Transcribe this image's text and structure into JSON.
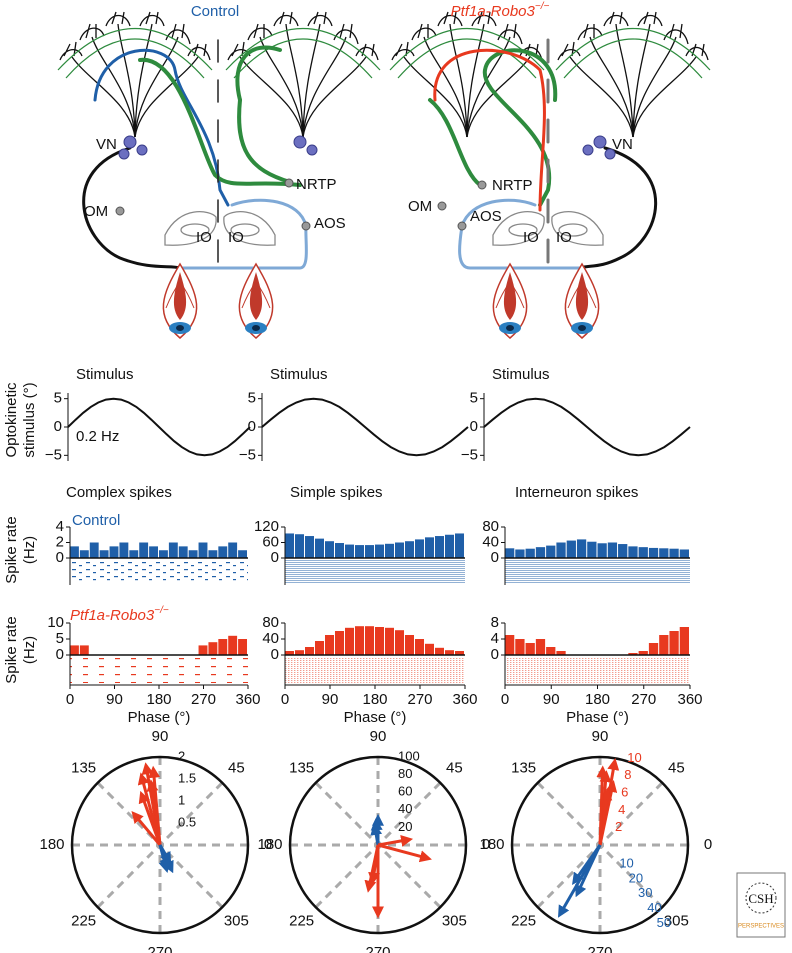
{
  "diagram": {
    "left": {
      "title": "Control",
      "labels": [
        "VN",
        "NRTP",
        "OM",
        "AOS",
        "IO",
        "IO"
      ]
    },
    "right": {
      "title": "Ptf1a-Robo3",
      "title_sup": "−/−",
      "labels": [
        "OM",
        "NRTP",
        "AOS",
        "IO",
        "IO",
        "VN"
      ]
    }
  },
  "stimulus": {
    "ylabel": [
      "Optokinetic",
      "stimulus (°)"
    ],
    "annotation": "0.2 Hz",
    "panels": [
      {
        "type": "line",
        "title": "Stimulus",
        "xlim": [
          0,
          360
        ],
        "ylim": [
          -6,
          6
        ],
        "yticks": [
          5,
          0,
          {
            "value": -5,
            "label": "−5"
          }
        ],
        "color": "#111111",
        "x": [
          0,
          15,
          30,
          45,
          60,
          75,
          90,
          105,
          120,
          135,
          150,
          165,
          180,
          195,
          210,
          225,
          240,
          255,
          270,
          285,
          300,
          315,
          330,
          345,
          360
        ],
        "values": [
          0,
          1.29,
          2.5,
          3.54,
          4.33,
          4.83,
          5,
          4.83,
          4.33,
          3.54,
          2.5,
          1.29,
          0,
          -1.29,
          -2.5,
          -3.54,
          -4.33,
          -4.83,
          -5,
          -4.83,
          -4.33,
          -3.54,
          -2.5,
          -1.29,
          0
        ]
      },
      {
        "type": "line",
        "title": "Stimulus",
        "xlim": [
          0,
          360
        ],
        "ylim": [
          -6,
          6
        ],
        "yticks": [
          5,
          0,
          {
            "value": -5,
            "label": "−5"
          }
        ],
        "color": "#111111",
        "x": [
          0,
          15,
          30,
          45,
          60,
          75,
          90,
          105,
          120,
          135,
          150,
          165,
          180,
          195,
          210,
          225,
          240,
          255,
          270,
          285,
          300,
          315,
          330,
          345,
          360
        ],
        "values": [
          0,
          1.29,
          2.5,
          3.54,
          4.33,
          4.83,
          5,
          4.83,
          4.33,
          3.54,
          2.5,
          1.29,
          0,
          -1.29,
          -2.5,
          -3.54,
          -4.33,
          -4.83,
          -5,
          -4.83,
          -4.33,
          -3.54,
          -2.5,
          -1.29,
          0
        ]
      },
      {
        "type": "line",
        "title": "Stimulus",
        "xlim": [
          0,
          360
        ],
        "ylim": [
          -6,
          6
        ],
        "yticks": [
          5,
          0,
          {
            "value": -5,
            "label": "−5"
          }
        ],
        "color": "#111111",
        "x": [
          0,
          15,
          30,
          45,
          60,
          75,
          90,
          105,
          120,
          135,
          150,
          165,
          180,
          195,
          210,
          225,
          240,
          255,
          270,
          285,
          300,
          315,
          330,
          345,
          360
        ],
        "values": [
          0,
          1.29,
          2.5,
          3.54,
          4.33,
          4.83,
          5,
          4.83,
          4.33,
          3.54,
          2.5,
          1.29,
          0,
          -1.29,
          -2.5,
          -3.54,
          -4.33,
          -4.83,
          -5,
          -4.83,
          -4.33,
          -3.54,
          -2.5,
          -1.29,
          0
        ]
      }
    ]
  },
  "spikes": {
    "titles": [
      "Complex spikes",
      "Simple spikes",
      "Interneuron spikes"
    ],
    "ylabel": [
      "Spike rate",
      "(Hz)"
    ],
    "xlabel": "Phase (°)",
    "rows": [
      {
        "label": "Control",
        "color": "#1f5fa8",
        "panels": [
          {
            "type": "histogram",
            "bins": [
              0,
              20,
              40,
              60,
              80,
              100,
              120,
              140,
              160,
              180,
              200,
              220,
              240,
              260,
              280,
              300,
              320,
              340,
              360
            ],
            "xlim": [
              0,
              360
            ],
            "ylim": [
              0,
              4
            ],
            "yticks": [
              0,
              2,
              4
            ],
            "values": [
              1.5,
              1,
              2,
              1,
              1.5,
              2,
              1,
              2,
              1.5,
              1,
              2,
              1.5,
              1,
              2,
              1,
              1.5,
              2,
              1
            ]
          },
          {
            "type": "histogram",
            "bins": [
              0,
              20,
              40,
              60,
              80,
              100,
              120,
              140,
              160,
              180,
              200,
              220,
              240,
              260,
              280,
              300,
              320,
              340,
              360
            ],
            "xlim": [
              0,
              360
            ],
            "ylim": [
              0,
              120
            ],
            "yticks": [
              0,
              60,
              120
            ],
            "values": [
              95,
              92,
              85,
              75,
              65,
              58,
              52,
              50,
              50,
              52,
              55,
              60,
              65,
              72,
              80,
              85,
              90,
              95
            ]
          },
          {
            "type": "histogram",
            "bins": [
              0,
              20,
              40,
              60,
              80,
              100,
              120,
              140,
              160,
              180,
              200,
              220,
              240,
              260,
              280,
              300,
              320,
              340,
              360
            ],
            "xlim": [
              0,
              360
            ],
            "ylim": [
              0,
              80
            ],
            "yticks": [
              0,
              40,
              80
            ],
            "values": [
              25,
              22,
              24,
              28,
              32,
              40,
              45,
              48,
              42,
              38,
              40,
              36,
              30,
              28,
              26,
              25,
              24,
              22
            ]
          }
        ]
      },
      {
        "label": "Ptf1a-Robo3",
        "label_sup": "−/−",
        "color": "#e8391f",
        "panels": [
          {
            "type": "histogram",
            "bins": [
              0,
              20,
              40,
              60,
              80,
              100,
              120,
              140,
              160,
              180,
              200,
              220,
              240,
              260,
              280,
              300,
              320,
              340,
              360
            ],
            "xlim": [
              0,
              360
            ],
            "ylim": [
              0,
              10
            ],
            "yticks": [
              0,
              5,
              10
            ],
            "xticks": [
              0,
              90,
              180,
              270,
              360
            ],
            "values": [
              3,
              3,
              0,
              0,
              0,
              0,
              0,
              0,
              0,
              0,
              0,
              0,
              0,
              3,
              4,
              5,
              6,
              5
            ]
          },
          {
            "type": "histogram",
            "bins": [
              0,
              20,
              40,
              60,
              80,
              100,
              120,
              140,
              160,
              180,
              200,
              220,
              240,
              260,
              280,
              300,
              320,
              340,
              360
            ],
            "xlim": [
              0,
              360
            ],
            "ylim": [
              0,
              80
            ],
            "yticks": [
              0,
              40,
              80
            ],
            "xticks": [
              0,
              90,
              180,
              270,
              360
            ],
            "values": [
              10,
              12,
              20,
              35,
              50,
              60,
              68,
              72,
              72,
              70,
              68,
              62,
              50,
              40,
              28,
              18,
              12,
              10
            ]
          },
          {
            "type": "histogram",
            "bins": [
              0,
              20,
              40,
              60,
              80,
              100,
              120,
              140,
              160,
              180,
              200,
              220,
              240,
              260,
              280,
              300,
              320,
              340,
              360
            ],
            "xlim": [
              0,
              360
            ],
            "ylim": [
              0,
              8
            ],
            "yticks": [
              0,
              4,
              8
            ],
            "xticks": [
              0,
              90,
              180,
              270,
              360
            ],
            "values": [
              5,
              4,
              3,
              4,
              2,
              1,
              0,
              0,
              0,
              0,
              0,
              0,
              0.5,
              1,
              3,
              5,
              6,
              7
            ]
          }
        ]
      }
    ]
  },
  "polar": {
    "panels": [
      {
        "type": "polar",
        "angle_labels": [
          0,
          45,
          90,
          135,
          180,
          225,
          270,
          305
        ],
        "rlim": [
          0,
          2
        ],
        "rticks": [
          0.5,
          1,
          1.5,
          2
        ],
        "series": [
          {
            "color": "#e8391f",
            "angles": [
              100,
              105,
              98,
              110,
              95,
              130
            ],
            "values": [
              1.8,
              1.6,
              1.4,
              1.2,
              1.7,
              0.9
            ]
          },
          {
            "color": "#1f5fa8",
            "angles": [
              290,
              295,
              300,
              285
            ],
            "values": [
              0.5,
              0.6,
              0.4,
              0.55
            ]
          }
        ]
      },
      {
        "type": "polar",
        "angle_labels": [
          0,
          45,
          90,
          135,
          180,
          225,
          270,
          305
        ],
        "rlim": [
          0,
          100
        ],
        "rticks": [
          20,
          40,
          60,
          80,
          100
        ],
        "series": [
          {
            "color": "#1f5fa8",
            "angles": [
              90,
              95,
              100
            ],
            "values": [
              30,
              25,
              20
            ]
          },
          {
            "color": "#e8391f",
            "angles": [
              270,
              258,
              262,
              345,
              10
            ],
            "values": [
              78,
              50,
              40,
              58,
              35
            ]
          }
        ]
      },
      {
        "type": "polar",
        "angle_labels": [
          0,
          45,
          90,
          135,
          180,
          225,
          270,
          305
        ],
        "series": [
          {
            "color": "#e8391f",
            "rlim": [
              0,
              10
            ],
            "rticks": [
              2,
              4,
              6,
              8,
              10
            ],
            "angles": [
              80,
              85,
              78,
              82,
              88
            ],
            "values": [
              9.5,
              8,
              7,
              6,
              8.5
            ]
          },
          {
            "color": "#1f5fa8",
            "rlim": [
              0,
              50
            ],
            "rticks": [
              10,
              20,
              30,
              40,
              50
            ],
            "angles": [
              240,
              245,
              235
            ],
            "values": [
              45,
              30,
              25
            ]
          }
        ]
      }
    ]
  },
  "logo": {
    "text": "CSH",
    "subtext": "PERSPECTIVES"
  }
}
